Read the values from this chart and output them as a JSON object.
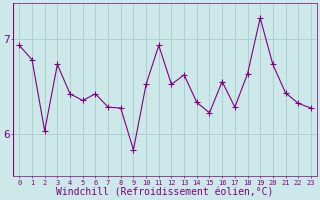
{
  "xlabel": "Windchill (Refroidissement éolien,°C)",
  "hours": [
    0,
    1,
    2,
    3,
    4,
    5,
    6,
    7,
    8,
    9,
    10,
    11,
    12,
    13,
    14,
    15,
    16,
    17,
    18,
    19,
    20,
    21,
    22,
    23
  ],
  "values": [
    6.93,
    6.78,
    6.03,
    6.73,
    6.42,
    6.35,
    6.42,
    6.28,
    6.27,
    5.83,
    6.52,
    6.93,
    6.52,
    6.62,
    6.33,
    6.22,
    6.55,
    6.28,
    6.63,
    7.22,
    6.73,
    6.43,
    6.32,
    6.27
  ],
  "line_color": "#800080",
  "marker": "+",
  "bg_color": "#cce8e8",
  "grid_color": "#aacccc",
  "axis_bg": "#cce8e8",
  "ylim": [
    5.55,
    7.38
  ],
  "yticks": [
    6,
    7
  ],
  "font_color": "#800080",
  "xlabel_fontsize": 7,
  "ytick_fontsize": 8,
  "xtick_fontsize": 5
}
